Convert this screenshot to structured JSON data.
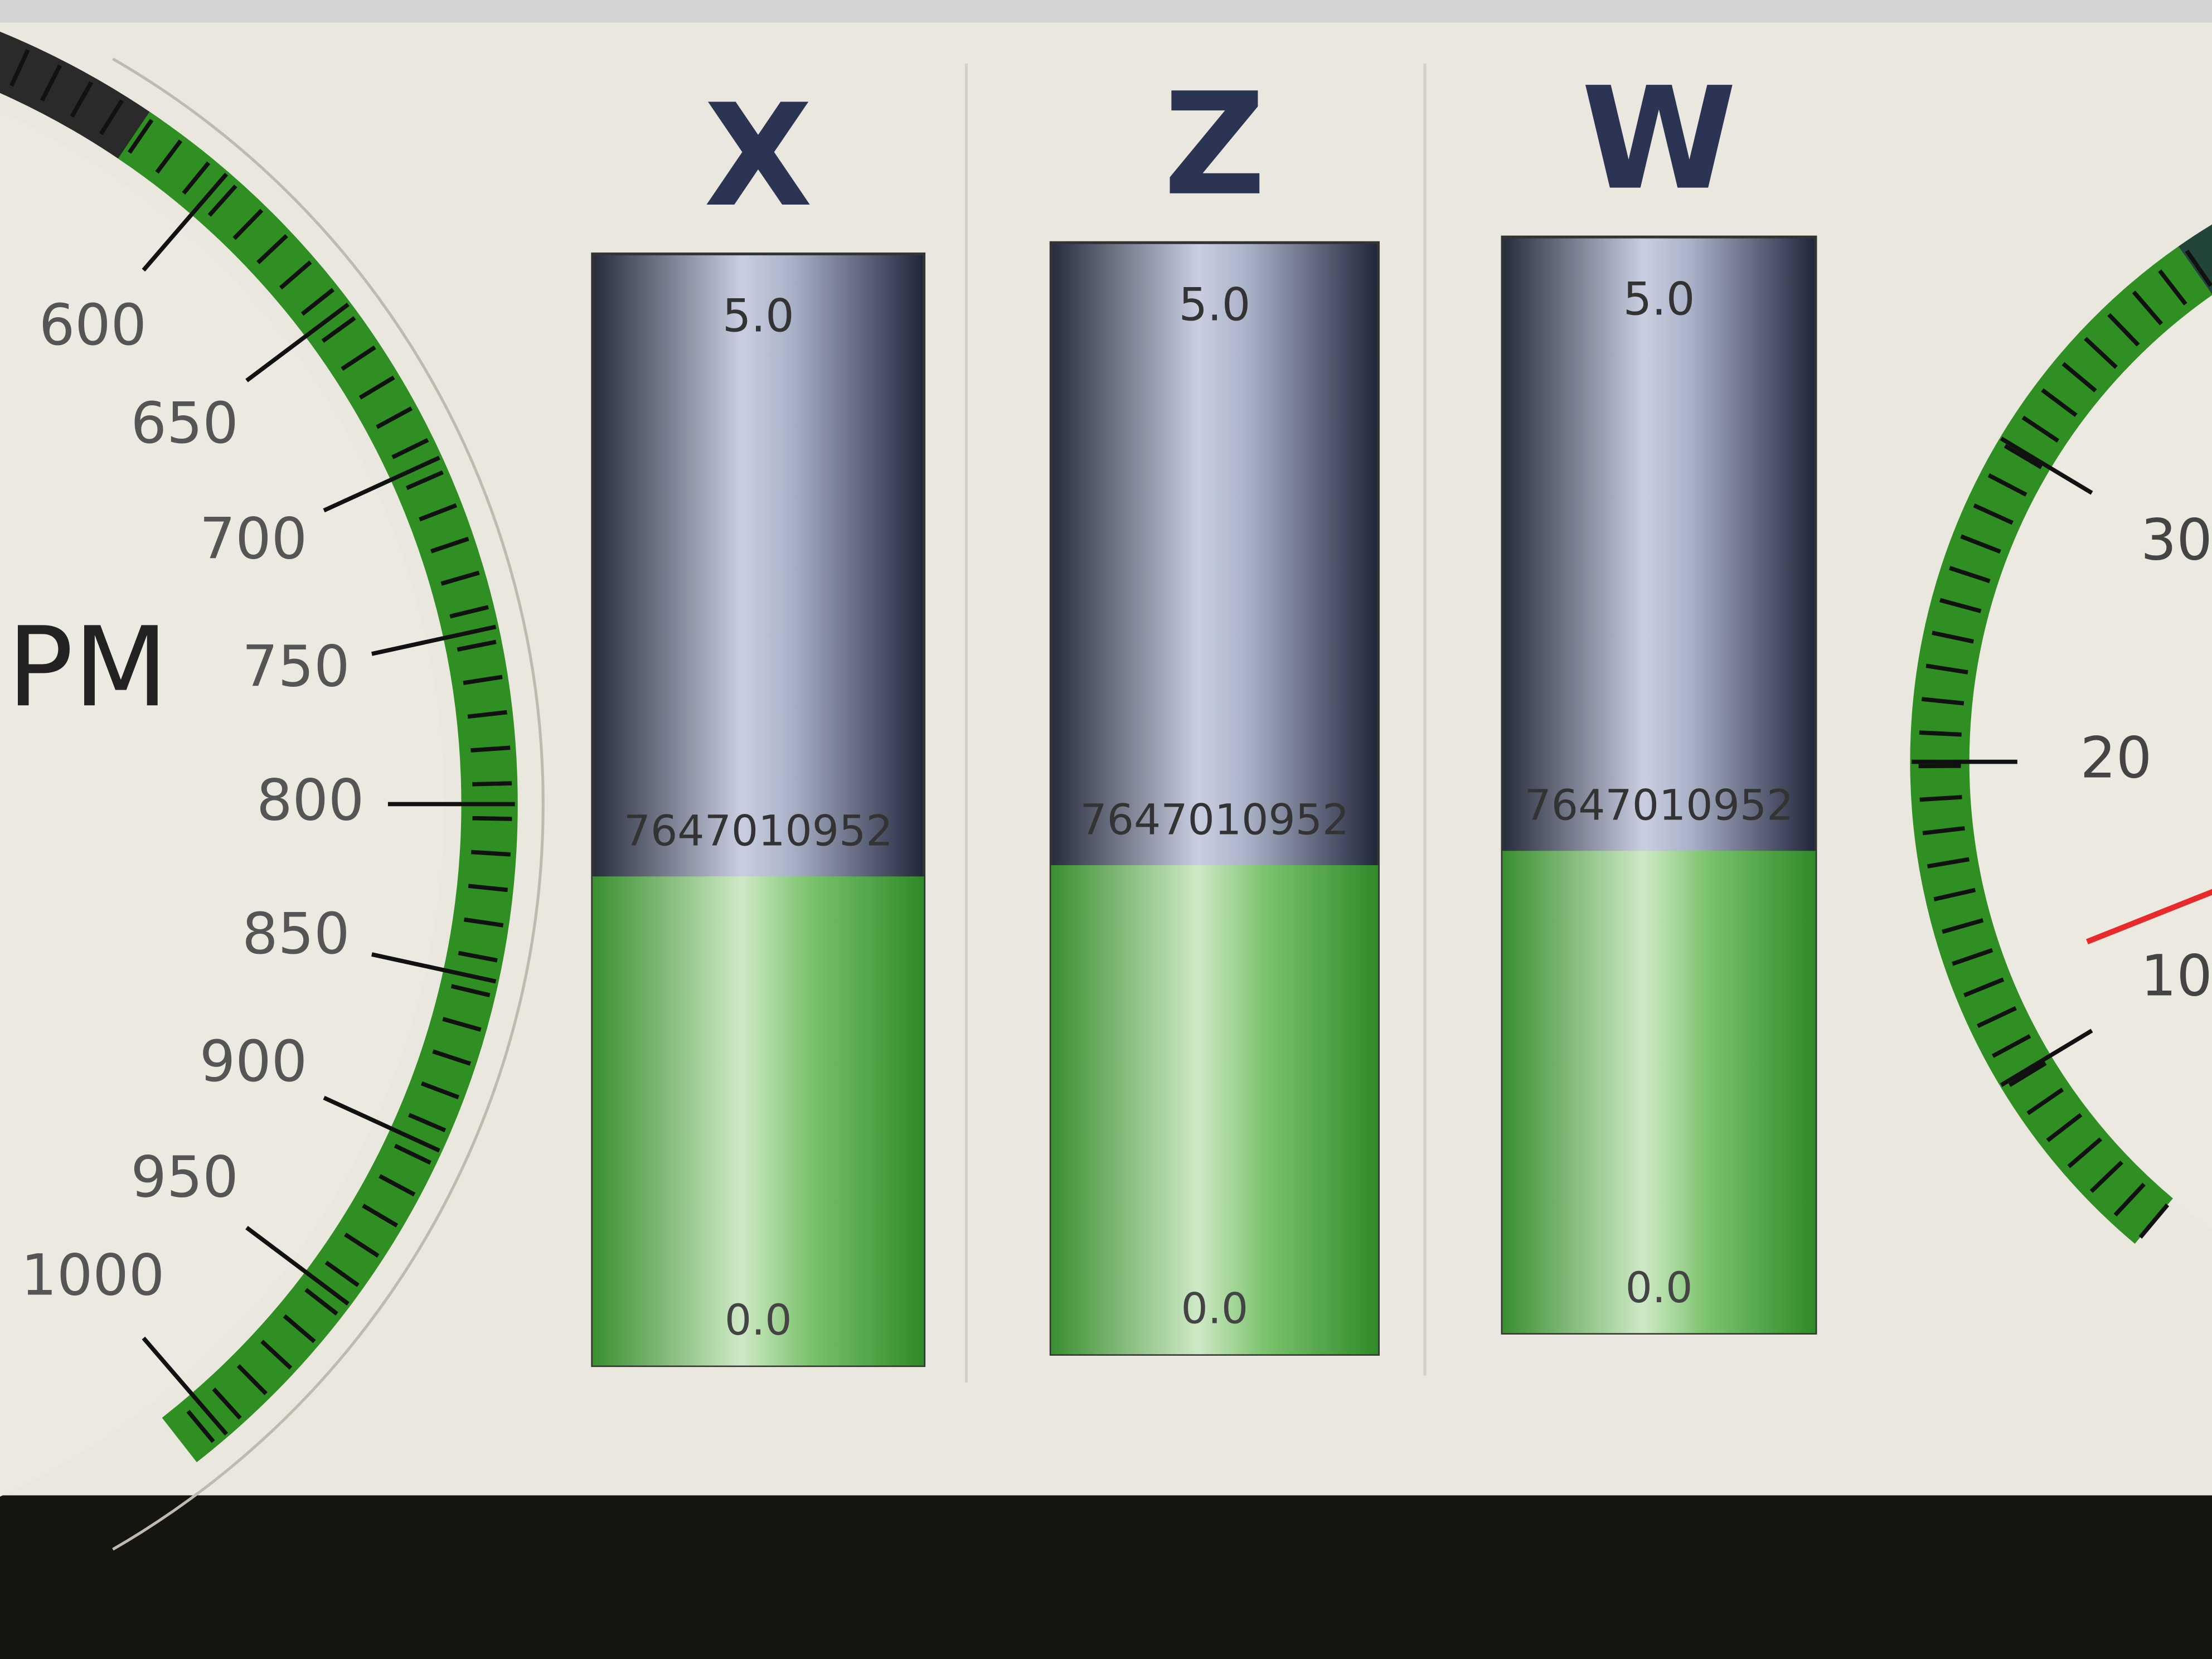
{
  "left_gauge": {
    "unit": "PM",
    "ticks": [
      600,
      650,
      700,
      750,
      800,
      850,
      900,
      950,
      1000
    ]
  },
  "bars": [
    {
      "title": "X",
      "max": {
        "value": 5,
        "label": "5.0"
      },
      "min": {
        "value": 0,
        "label": "0.0"
      },
      "readout": "7647010952",
      "fill": 2.2
    },
    {
      "title": "Z",
      "max": {
        "value": 5,
        "label": "5.0"
      },
      "min": {
        "value": 0,
        "label": "0.0"
      },
      "readout": "7647010952",
      "fill": 2.2
    },
    {
      "title": "W",
      "max": {
        "value": 5,
        "label": "5.0"
      },
      "min": {
        "value": 0,
        "label": "0.0"
      },
      "readout": "7647010952",
      "fill": 2.2
    }
  ],
  "right_gauge": {
    "ticks": [
      10,
      20,
      30
    ],
    "needle": 13
  }
}
